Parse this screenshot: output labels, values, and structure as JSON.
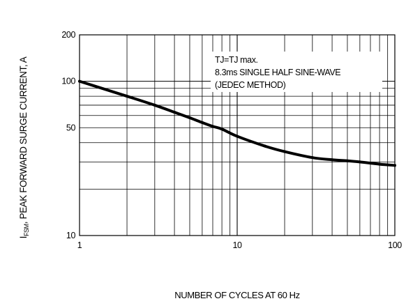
{
  "chart_data": {
    "type": "line",
    "xscale": "log",
    "yscale": "log",
    "xlim": [
      1,
      100
    ],
    "ylim": [
      10,
      200
    ],
    "xlabel": "NUMBER OF CYCLES AT 60 Hz",
    "ylabel": "Iₓₐ, PEAK FORWARD SURGE CURRENT, A",
    "ylabel_prefix": "I",
    "ylabel_sub": "FSM",
    "ylabel_rest": ", PEAK FORWARD SURGE CURRENT, A",
    "x_ticks": [
      {
        "value": 1,
        "label": "1"
      },
      {
        "value": 10,
        "label": "10"
      },
      {
        "value": 100,
        "label": "100"
      }
    ],
    "y_ticks": [
      {
        "value": 10,
        "label": "10"
      },
      {
        "value": 50,
        "label": "50"
      },
      {
        "value": 100,
        "label": "100"
      },
      {
        "value": 200,
        "label": "200"
      }
    ],
    "grid": true,
    "annotations": [
      "TJ=TJ max.",
      "8.3ms SINGLE HALF SINE-WAVE",
      "(JEDEC METHOD)"
    ],
    "series": [
      {
        "color": "#000000",
        "x": [
          1,
          2,
          3,
          4,
          5,
          6,
          7,
          8,
          10,
          15,
          20,
          30,
          40,
          50,
          60,
          80,
          100
        ],
        "y": [
          100,
          80,
          70,
          63,
          58,
          54,
          51,
          49,
          44,
          38,
          35,
          32,
          31,
          30.5,
          30,
          29,
          28.5
        ]
      }
    ]
  }
}
